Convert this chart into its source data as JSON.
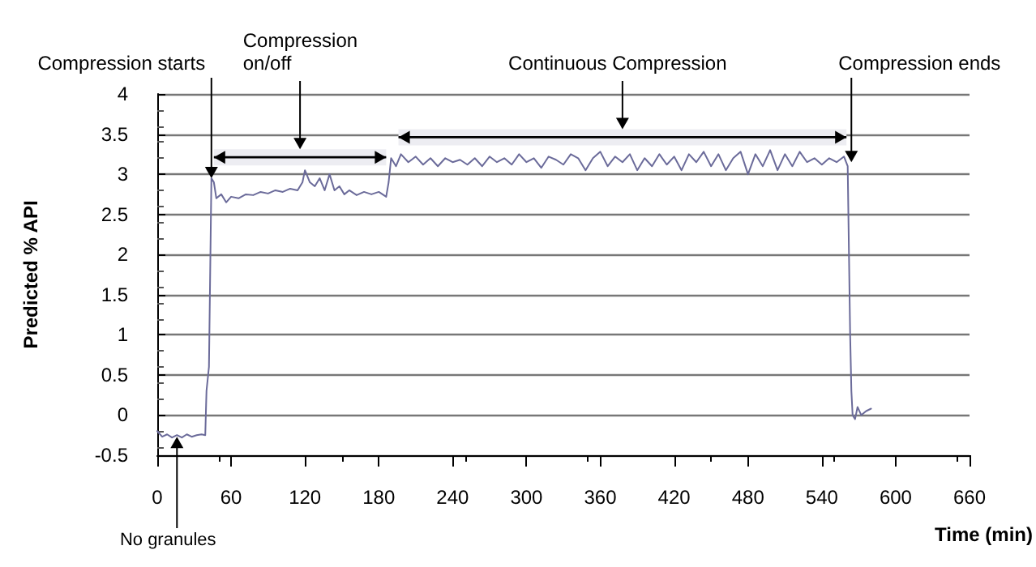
{
  "chart_data": {
    "type": "line",
    "xlabel": "Time (min)",
    "ylabel": "Predicted % API",
    "xlim": [
      0,
      660
    ],
    "xticks": [
      0,
      60,
      120,
      180,
      240,
      300,
      360,
      420,
      480,
      540,
      600,
      660
    ],
    "ylim": [
      -0.5,
      4
    ],
    "yticks": [
      -0.5,
      0,
      0.5,
      1,
      1.5,
      2,
      2.5,
      3,
      3.5,
      4
    ],
    "grid": "y",
    "marker": "none",
    "line_style": "solid",
    "series": [
      {
        "color": "#6b6b9a",
        "x": [
          0,
          4,
          8,
          12,
          16,
          20,
          24,
          28,
          32,
          36,
          39,
          40,
          42,
          44,
          46,
          48,
          52,
          56,
          60,
          66,
          72,
          78,
          84,
          90,
          96,
          102,
          108,
          114,
          118,
          120,
          124,
          128,
          132,
          136,
          140,
          144,
          148,
          152,
          156,
          162,
          168,
          174,
          180,
          186,
          188,
          190,
          194,
          198,
          204,
          210,
          216,
          222,
          228,
          234,
          240,
          246,
          252,
          258,
          264,
          270,
          276,
          282,
          288,
          294,
          300,
          306,
          312,
          318,
          324,
          330,
          336,
          342,
          348,
          354,
          360,
          366,
          372,
          378,
          384,
          390,
          396,
          402,
          408,
          414,
          420,
          426,
          432,
          438,
          444,
          450,
          456,
          462,
          468,
          474,
          480,
          486,
          492,
          498,
          504,
          510,
          516,
          522,
          528,
          534,
          540,
          546,
          552,
          558,
          561,
          563,
          564,
          565,
          567,
          569,
          572,
          576,
          580
        ],
        "values": [
          -0.2,
          -0.27,
          -0.24,
          -0.28,
          -0.25,
          -0.28,
          -0.24,
          -0.27,
          -0.25,
          -0.24,
          -0.25,
          0.3,
          0.6,
          2.95,
          2.9,
          2.7,
          2.75,
          2.65,
          2.72,
          2.7,
          2.75,
          2.74,
          2.78,
          2.76,
          2.8,
          2.78,
          2.82,
          2.8,
          2.9,
          3.05,
          2.9,
          2.85,
          2.95,
          2.8,
          3.0,
          2.8,
          2.85,
          2.75,
          2.8,
          2.74,
          2.78,
          2.75,
          2.78,
          2.72,
          2.9,
          3.2,
          3.1,
          3.25,
          3.15,
          3.22,
          3.12,
          3.2,
          3.1,
          3.2,
          3.15,
          3.18,
          3.12,
          3.2,
          3.1,
          3.22,
          3.15,
          3.2,
          3.12,
          3.25,
          3.15,
          3.2,
          3.08,
          3.22,
          3.18,
          3.12,
          3.25,
          3.2,
          3.05,
          3.2,
          3.28,
          3.1,
          3.22,
          3.15,
          3.25,
          3.05,
          3.2,
          3.1,
          3.25,
          3.12,
          3.22,
          3.05,
          3.25,
          3.15,
          3.28,
          3.1,
          3.25,
          3.05,
          3.2,
          3.28,
          3.0,
          3.25,
          3.1,
          3.3,
          3.05,
          3.25,
          3.1,
          3.28,
          3.15,
          3.2,
          3.12,
          3.2,
          3.15,
          3.22,
          3.1,
          1.0,
          0.3,
          0.0,
          -0.05,
          0.1,
          0.0,
          0.05,
          0.08
        ]
      }
    ],
    "annotations": [
      {
        "text": "Compression starts",
        "x": 44,
        "y": 2.95
      },
      {
        "text": "Compression ends",
        "x": 564,
        "y": 3.15
      },
      {
        "text": "No granules",
        "x": 16,
        "y": -0.27
      }
    ],
    "bands": [
      {
        "axis": "x",
        "from": 46,
        "to": 186,
        "label": "Compression\non/off"
      },
      {
        "axis": "x",
        "from": 196,
        "to": 560,
        "label": "Continuous Compression"
      }
    ]
  }
}
